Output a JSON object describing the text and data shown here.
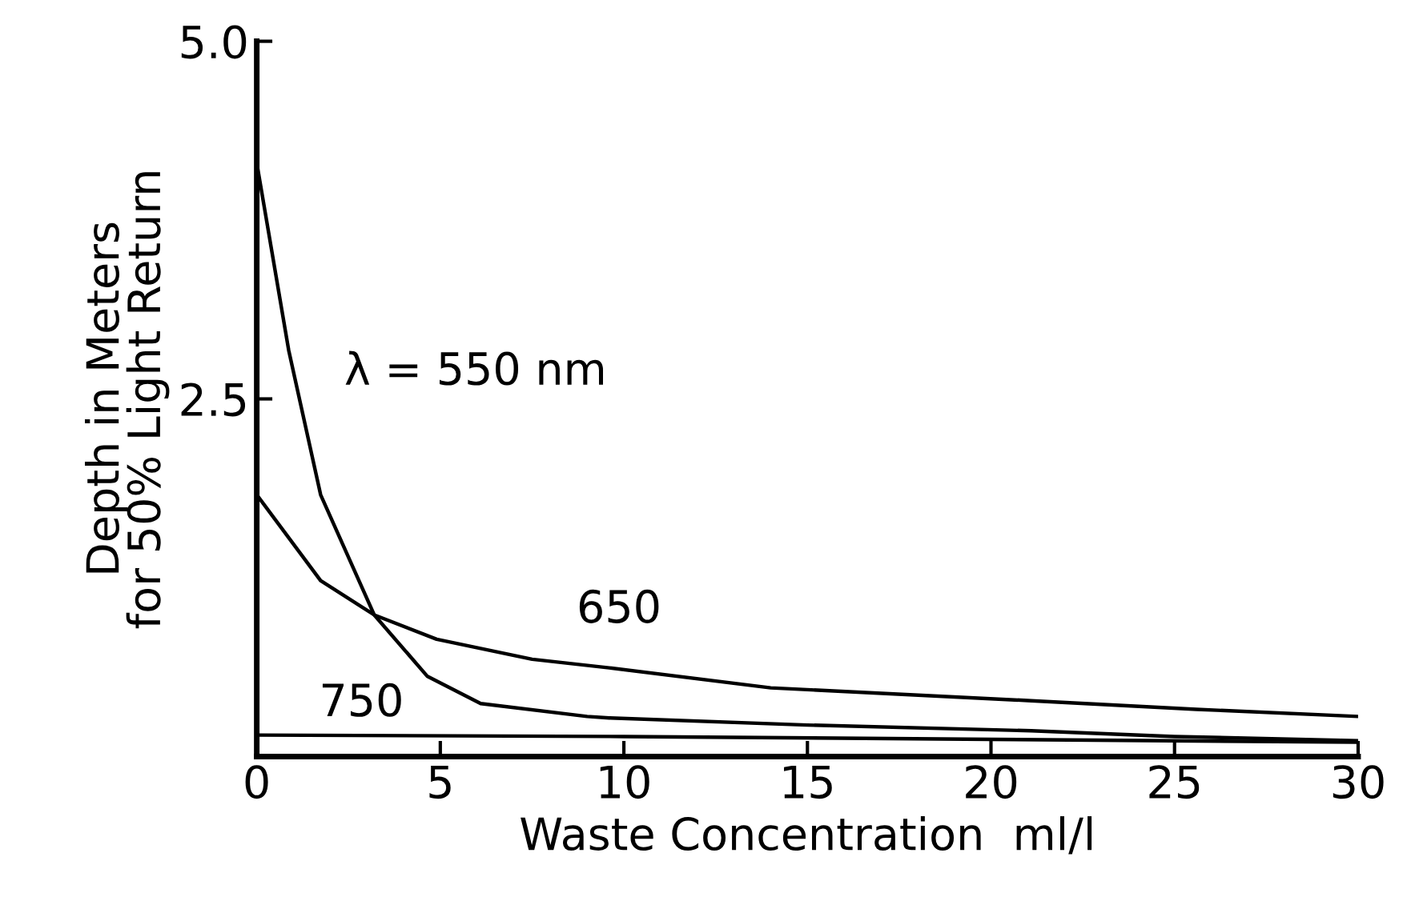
{
  "chart_data": {
    "type": "line",
    "xlabel": "Waste Concentration  ml/l",
    "ylabel": "Depth in Meters\nfor 50% Light Return",
    "xlim": [
      0,
      30
    ],
    "ylim": [
      0,
      5.0
    ],
    "xticks": [
      0,
      5,
      10,
      15,
      20,
      25,
      30
    ],
    "yticks": [
      {
        "value": 2.5,
        "label": "2.5"
      },
      {
        "value": 5,
        "label": "5.0"
      }
    ],
    "grid": false,
    "marker": "none",
    "line_style": "solid",
    "series": [
      {
        "name": "λ = 550 nm",
        "color": "#000000",
        "x": [
          0,
          0.87,
          1.74,
          3.2,
          4.65,
          6.1,
          9,
          9.6,
          15,
          21.1,
          25,
          30
        ],
        "values": [
          4.15,
          2.84,
          1.83,
          0.99,
          0.56,
          0.37,
          0.28,
          0.27,
          0.22,
          0.18,
          0.14,
          0.11
        ]
      },
      {
        "name": "650",
        "color": "#000000",
        "x": [
          0,
          1.74,
          3.2,
          4.9,
          7.5,
          9.6,
          14,
          21.1,
          25.6,
          30
        ],
        "values": [
          1.83,
          1.23,
          0.99,
          0.82,
          0.68,
          0.62,
          0.48,
          0.39,
          0.33,
          0.28
        ]
      },
      {
        "name": "750",
        "color": "#000000",
        "x": [
          0,
          10,
          20,
          30
        ],
        "values": [
          0.15,
          0.14,
          0.12,
          0.1
        ]
      }
    ]
  }
}
